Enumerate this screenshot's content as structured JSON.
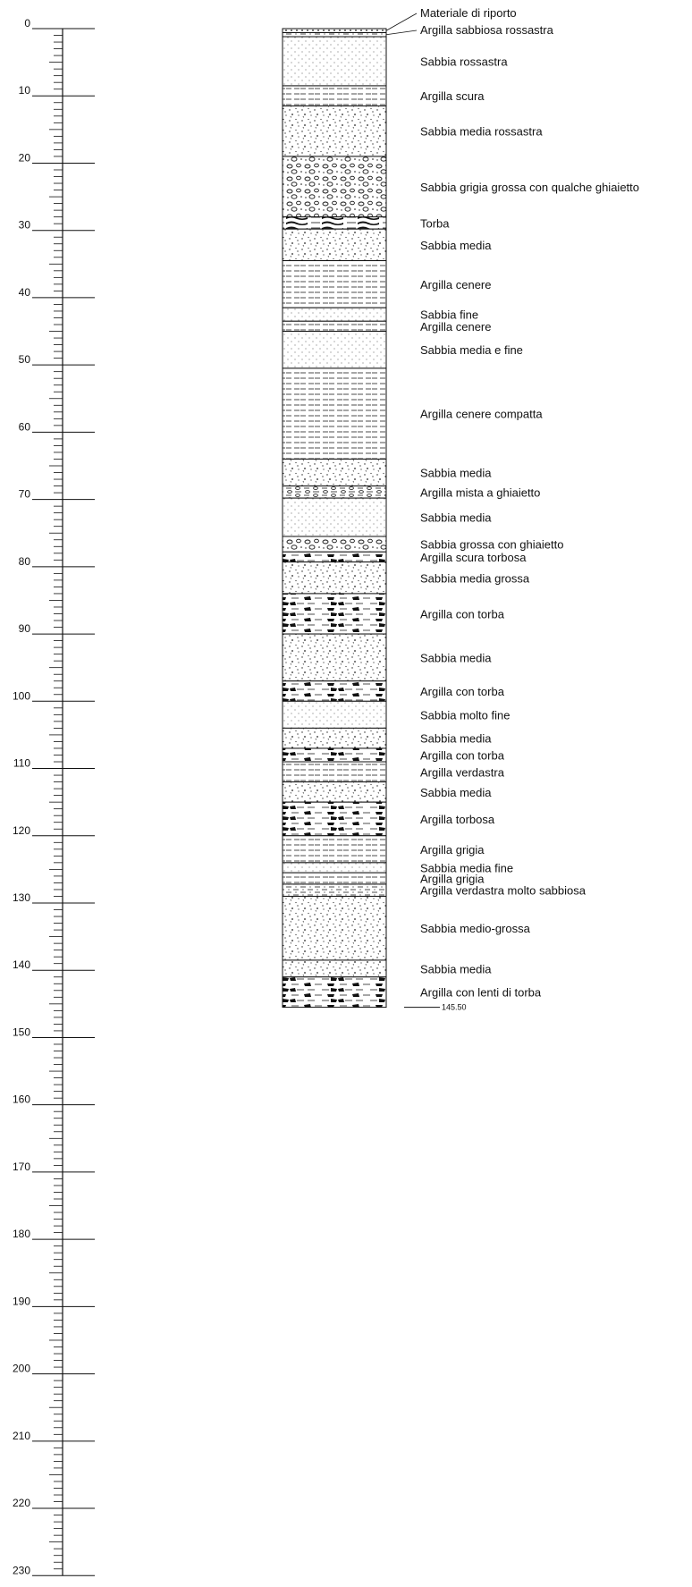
{
  "scale": {
    "ticks": [
      0,
      10,
      20,
      30,
      40,
      50,
      60,
      70,
      80,
      90,
      100,
      110,
      120,
      130,
      140,
      150,
      160,
      170,
      180,
      190,
      200,
      210,
      220,
      230
    ],
    "max_depth": 230
  },
  "final_depth_label": "145.50",
  "layers": [
    {
      "top": 0,
      "bottom": 0.6,
      "pattern": "fill",
      "label": "Materiale di riporto",
      "leader": true
    },
    {
      "top": 0.6,
      "bottom": 1.2,
      "pattern": "clay-sandy",
      "label": "Argilla sabbiosa rossastra",
      "leader": true
    },
    {
      "top": 1.2,
      "bottom": 8.5,
      "pattern": "sand-fine",
      "label": "Sabbia rossastra"
    },
    {
      "top": 8.5,
      "bottom": 11.5,
      "pattern": "clay",
      "label": "Argilla scura"
    },
    {
      "top": 11.5,
      "bottom": 19,
      "pattern": "sand-medium",
      "label": "Sabbia media rossastra"
    },
    {
      "top": 19,
      "bottom": 28,
      "pattern": "gravel",
      "label": "Sabbia grigia grossa con qualche ghiaietto"
    },
    {
      "top": 28,
      "bottom": 29.8,
      "pattern": "peat",
      "label": "Torba"
    },
    {
      "top": 29.8,
      "bottom": 34.5,
      "pattern": "sand-medium",
      "label": "Sabbia media"
    },
    {
      "top": 34.5,
      "bottom": 41.5,
      "pattern": "clay",
      "label": "Argilla cenere"
    },
    {
      "top": 41.5,
      "bottom": 43.5,
      "pattern": "sand-fine",
      "label": "Sabbia fine"
    },
    {
      "top": 43.5,
      "bottom": 45,
      "pattern": "clay",
      "label": "Argilla cenere"
    },
    {
      "top": 45,
      "bottom": 50.5,
      "pattern": "sand-fine",
      "label": "Sabbia media e fine"
    },
    {
      "top": 50.5,
      "bottom": 64,
      "pattern": "clay",
      "label": "Argilla cenere compatta"
    },
    {
      "top": 64,
      "bottom": 68,
      "pattern": "sand-medium",
      "label": "Sabbia media"
    },
    {
      "top": 68,
      "bottom": 69.8,
      "pattern": "clay-gravel",
      "label": "Argilla mista a ghiaietto"
    },
    {
      "top": 69.8,
      "bottom": 75.5,
      "pattern": "sand-fine",
      "label": "Sabbia media"
    },
    {
      "top": 75.5,
      "bottom": 77.8,
      "pattern": "gravel",
      "label": "Sabbia grossa con ghiaietto"
    },
    {
      "top": 77.8,
      "bottom": 79.3,
      "pattern": "clay-peat",
      "label": "Argilla scura torbosa"
    },
    {
      "top": 79.3,
      "bottom": 84,
      "pattern": "sand-medium",
      "label": "Sabbia media grossa"
    },
    {
      "top": 84,
      "bottom": 90,
      "pattern": "clay-peat",
      "label": "Argilla con torba"
    },
    {
      "top": 90,
      "bottom": 97,
      "pattern": "sand-medium",
      "label": "Sabbia media"
    },
    {
      "top": 97,
      "bottom": 100,
      "pattern": "clay-peat",
      "label": "Argilla con torba"
    },
    {
      "top": 100,
      "bottom": 104,
      "pattern": "sand-fine",
      "label": "Sabbia molto fine"
    },
    {
      "top": 104,
      "bottom": 107,
      "pattern": "sand-medium",
      "label": "Sabbia media"
    },
    {
      "top": 107,
      "bottom": 109,
      "pattern": "clay-peat",
      "label": "Argilla con torba"
    },
    {
      "top": 109,
      "bottom": 112,
      "pattern": "clay",
      "label": "Argilla verdastra"
    },
    {
      "top": 112,
      "bottom": 115,
      "pattern": "sand-medium",
      "label": "Sabbia media"
    },
    {
      "top": 115,
      "bottom": 120,
      "pattern": "clay-peat",
      "label": "Argilla torbosa"
    },
    {
      "top": 120,
      "bottom": 124,
      "pattern": "clay",
      "label": "Argilla grigia"
    },
    {
      "top": 124,
      "bottom": 125.5,
      "pattern": "sand-fine",
      "label": "Sabbia media fine"
    },
    {
      "top": 125.5,
      "bottom": 127.2,
      "pattern": "clay",
      "label": "Argilla grigia"
    },
    {
      "top": 127.2,
      "bottom": 129,
      "pattern": "clay-sandy",
      "label": "Argilla verdastra molto sabbiosa"
    },
    {
      "top": 129,
      "bottom": 138.5,
      "pattern": "sand-medium",
      "label": "Sabbia medio-grossa"
    },
    {
      "top": 138.5,
      "bottom": 141,
      "pattern": "sand-medium",
      "label": "Sabbia media"
    },
    {
      "top": 141,
      "bottom": 145.5,
      "pattern": "clay-peat",
      "label": "Argilla con lenti di torba"
    }
  ]
}
